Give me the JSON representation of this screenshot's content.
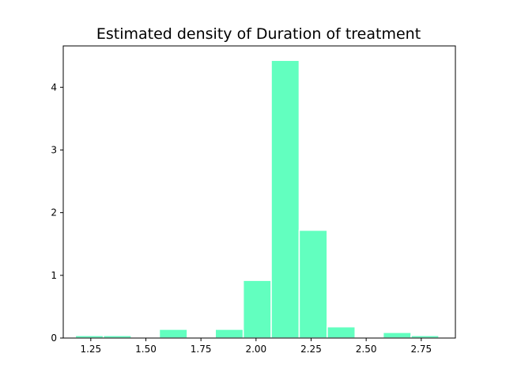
{
  "chart_data": {
    "type": "bar",
    "title": "Estimated density of Duration of treatment",
    "xlabel": "",
    "ylabel": "",
    "xlim": [
      1.125,
      2.905
    ],
    "ylim": [
      0,
      4.66
    ],
    "xticks": [
      1.25,
      1.5,
      1.75,
      2.0,
      2.25,
      2.5,
      2.75
    ],
    "xtick_labels": [
      "1.25",
      "1.50",
      "1.75",
      "2.00",
      "2.25",
      "2.50",
      "2.75"
    ],
    "yticks": [
      0,
      1,
      2,
      3,
      4
    ],
    "ytick_labels": [
      "0",
      "1",
      "2",
      "3",
      "4"
    ],
    "bin_edges": [
      1.18,
      1.307,
      1.434,
      1.561,
      1.688,
      1.815,
      1.942,
      2.069,
      2.196,
      2.323,
      2.45,
      2.577,
      2.704,
      2.83
    ],
    "values": [
      0.04,
      0.04,
      0.0,
      0.14,
      0.0,
      0.14,
      0.92,
      4.43,
      1.72,
      0.18,
      0.0,
      0.09,
      0.04
    ],
    "bar_color": "#62ffbf",
    "edge_color": "#ffffff",
    "grid": false
  }
}
